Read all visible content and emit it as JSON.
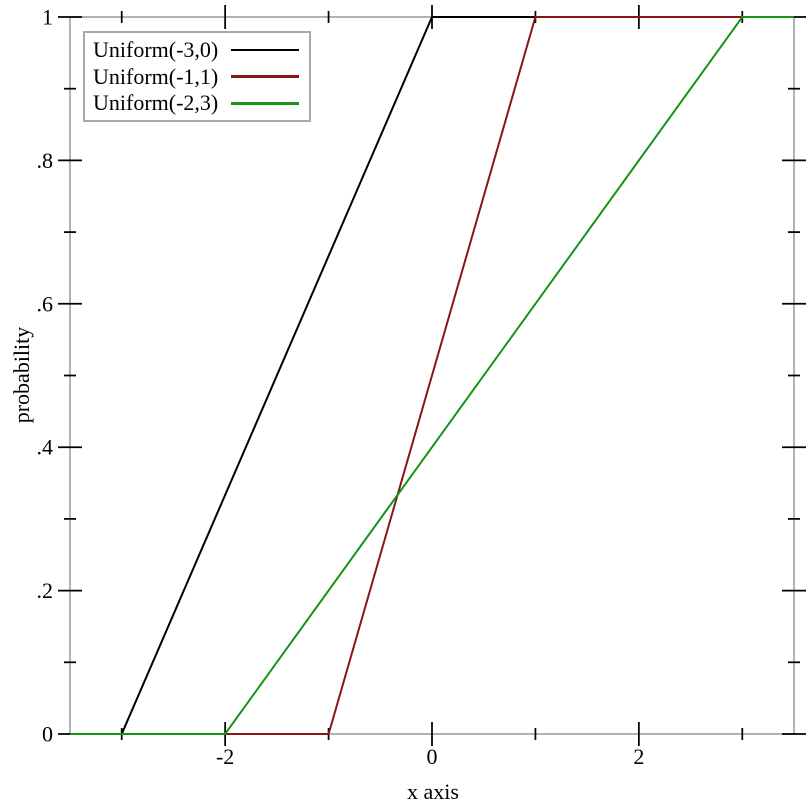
{
  "chart_data": {
    "type": "line",
    "title": "",
    "xlabel": "x axis",
    "ylabel": "probability",
    "xlim": [
      -3.5,
      3.5
    ],
    "ylim": [
      0,
      1
    ],
    "grid": false,
    "legend_position": "top-left",
    "x_ticks": {
      "major": [
        {
          "value": -2,
          "label": "-2"
        },
        {
          "value": 0,
          "label": "0"
        },
        {
          "value": 2,
          "label": "2"
        }
      ],
      "minor": [
        -3,
        -1,
        1,
        3
      ]
    },
    "y_ticks": {
      "major": [
        {
          "value": 0,
          "label": "0"
        },
        {
          "value": 0.2,
          "label": ".2"
        },
        {
          "value": 0.4,
          "label": ".4"
        },
        {
          "value": 0.6,
          "label": ".6"
        },
        {
          "value": 0.8,
          "label": ".8"
        },
        {
          "value": 1,
          "label": "1"
        }
      ],
      "minor": [
        0.1,
        0.3,
        0.5,
        0.7,
        0.9
      ]
    },
    "series": [
      {
        "name": "Uniform(-3,0)",
        "color": "#000000",
        "points": [
          [
            -3.5,
            0
          ],
          [
            -3,
            0
          ],
          [
            0,
            1
          ],
          [
            3.5,
            1
          ]
        ]
      },
      {
        "name": "Uniform(-1,1)",
        "color": "#8b1515",
        "points": [
          [
            -3.5,
            0
          ],
          [
            -1,
            0
          ],
          [
            1,
            1
          ],
          [
            3.5,
            1
          ]
        ]
      },
      {
        "name": "Uniform(-2,3)",
        "color": "#169416",
        "points": [
          [
            -3.5,
            0
          ],
          [
            -2,
            0
          ],
          [
            3,
            1
          ],
          [
            3.5,
            1
          ]
        ]
      }
    ]
  },
  "colors": {
    "background": "#ffffff",
    "frame": "#999999",
    "tick": "#000000",
    "text": "#000000",
    "legend_border": "#a9a9a9",
    "legend_background": "#ffffff"
  }
}
